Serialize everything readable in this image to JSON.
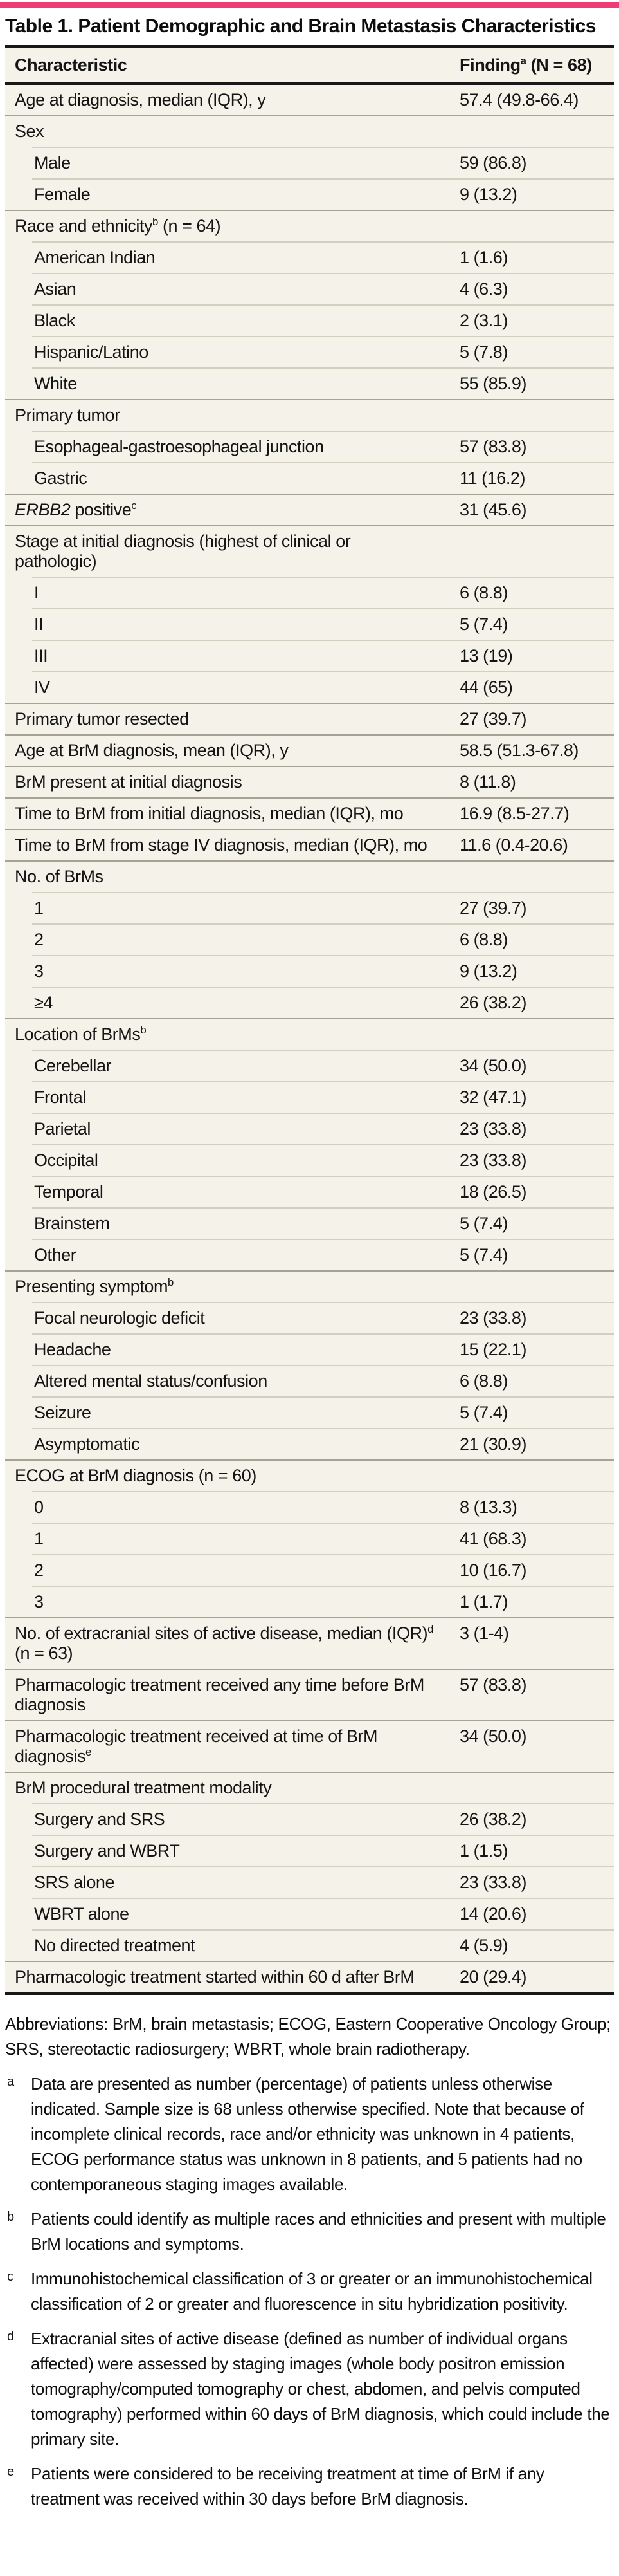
{
  "colors": {
    "accent": "#ee3d74",
    "table_bg": "#f4f2e9",
    "heavy_rule": "#181818",
    "rule_full": "#a6a396",
    "rule_sub": "#d3d0c2"
  },
  "title": "Table 1. Patient Demographic and Brain Metastasis Characteristics",
  "table": {
    "columns": {
      "characteristic": "Characteristic",
      "finding": "Finding^a (N = 68)"
    },
    "rows": [
      {
        "label": "Age at diagnosis, median (IQR), y",
        "value": "57.4 (49.8-66.4)",
        "indent": 0
      },
      {
        "label": "Sex",
        "value": "",
        "indent": 0
      },
      {
        "label": "Male",
        "value": "59 (86.8)",
        "indent": 1
      },
      {
        "label": "Female",
        "value": "9 (13.2)",
        "indent": 1
      },
      {
        "label": "Race and ethnicity^b (n = 64)",
        "value": "",
        "indent": 0
      },
      {
        "label": "American Indian",
        "value": "1 (1.6)",
        "indent": 1
      },
      {
        "label": "Asian",
        "value": "4 (6.3)",
        "indent": 1
      },
      {
        "label": "Black",
        "value": "2 (3.1)",
        "indent": 1
      },
      {
        "label": "Hispanic/Latino",
        "value": "5 (7.8)",
        "indent": 1
      },
      {
        "label": "White",
        "value": "55 (85.9)",
        "indent": 1
      },
      {
        "label": "Primary tumor",
        "value": "",
        "indent": 0
      },
      {
        "label": "Esophageal-gastroesophageal junction",
        "value": "57 (83.8)",
        "indent": 1
      },
      {
        "label": "Gastric",
        "value": "11 (16.2)",
        "indent": 1
      },
      {
        "label": "*ERBB2* positive^c",
        "value": "31 (45.6)",
        "indent": 0
      },
      {
        "label": "Stage at initial diagnosis (highest of clinical or\npathologic)",
        "value": "",
        "indent": 0
      },
      {
        "label": "I",
        "value": "6 (8.8)",
        "indent": 1
      },
      {
        "label": "II",
        "value": "5 (7.4)",
        "indent": 1
      },
      {
        "label": "III",
        "value": "13 (19)",
        "indent": 1
      },
      {
        "label": "IV",
        "value": "44 (65)",
        "indent": 1
      },
      {
        "label": "Primary tumor resected",
        "value": "27 (39.7)",
        "indent": 0
      },
      {
        "label": "Age at BrM diagnosis, mean (IQR), y",
        "value": "58.5 (51.3-67.8)",
        "indent": 0
      },
      {
        "label": "BrM present at initial diagnosis",
        "value": "8 (11.8)",
        "indent": 0
      },
      {
        "label": "Time to BrM from initial diagnosis, median (IQR), mo",
        "value": "16.9 (8.5-27.7)",
        "indent": 0
      },
      {
        "label": "Time to BrM from stage IV diagnosis, median (IQR), mo",
        "value": "11.6 (0.4-20.6)",
        "indent": 0
      },
      {
        "label": "No. of BrMs",
        "value": "",
        "indent": 0
      },
      {
        "label": "1",
        "value": "27 (39.7)",
        "indent": 1
      },
      {
        "label": "2",
        "value": "6 (8.8)",
        "indent": 1
      },
      {
        "label": "3",
        "value": "9 (13.2)",
        "indent": 1
      },
      {
        "label": "≥4",
        "value": "26 (38.2)",
        "indent": 1
      },
      {
        "label": "Location of BrMs^b",
        "value": "",
        "indent": 0
      },
      {
        "label": "Cerebellar",
        "value": "34 (50.0)",
        "indent": 1
      },
      {
        "label": "Frontal",
        "value": "32 (47.1)",
        "indent": 1
      },
      {
        "label": "Parietal",
        "value": "23 (33.8)",
        "indent": 1
      },
      {
        "label": "Occipital",
        "value": "23 (33.8)",
        "indent": 1
      },
      {
        "label": "Temporal",
        "value": "18 (26.5)",
        "indent": 1
      },
      {
        "label": "Brainstem",
        "value": "5 (7.4)",
        "indent": 1
      },
      {
        "label": "Other",
        "value": "5 (7.4)",
        "indent": 1
      },
      {
        "label": "Presenting symptom^b",
        "value": "",
        "indent": 0
      },
      {
        "label": "Focal neurologic deficit",
        "value": "23 (33.8)",
        "indent": 1
      },
      {
        "label": "Headache",
        "value": "15 (22.1)",
        "indent": 1
      },
      {
        "label": "Altered mental status/confusion",
        "value": "6 (8.8)",
        "indent": 1
      },
      {
        "label": "Seizure",
        "value": "5 (7.4)",
        "indent": 1
      },
      {
        "label": "Asymptomatic",
        "value": "21 (30.9)",
        "indent": 1
      },
      {
        "label": "ECOG at BrM diagnosis (n = 60)",
        "value": "",
        "indent": 0
      },
      {
        "label": "0",
        "value": "8 (13.3)",
        "indent": 1
      },
      {
        "label": "1",
        "value": "41 (68.3)",
        "indent": 1
      },
      {
        "label": "2",
        "value": "10 (16.7)",
        "indent": 1
      },
      {
        "label": "3",
        "value": "1 (1.7)",
        "indent": 1
      },
      {
        "label": "No. of extracranial sites of active disease, median (IQR)^d\n(n = 63)",
        "value": "3 (1-4)",
        "indent": 0
      },
      {
        "label": "Pharmacologic treatment received any time before BrM\ndiagnosis",
        "value": "57 (83.8)",
        "indent": 0
      },
      {
        "label": "Pharmacologic treatment received at time of BrM\ndiagnosis^e",
        "value": "34 (50.0)",
        "indent": 0
      },
      {
        "label": "BrM procedural treatment modality",
        "value": "",
        "indent": 0
      },
      {
        "label": "Surgery and SRS",
        "value": "26 (38.2)",
        "indent": 1
      },
      {
        "label": "Surgery and WBRT",
        "value": "1 (1.5)",
        "indent": 1
      },
      {
        "label": "SRS alone",
        "value": "23 (33.8)",
        "indent": 1
      },
      {
        "label": "WBRT alone",
        "value": "14 (20.6)",
        "indent": 1
      },
      {
        "label": "No directed treatment",
        "value": "4 (5.9)",
        "indent": 1
      },
      {
        "label": "Pharmacologic treatment started within 60 d after BrM",
        "value": "20 (29.4)",
        "indent": 0
      }
    ]
  },
  "footnotes": {
    "abbreviations": "Abbreviations: BrM, brain metastasis; ECOG, Eastern Cooperative Oncology Group; SRS, stereotactic radiosurgery; WBRT, whole brain radiotherapy.",
    "items": [
      {
        "marker": "a",
        "text": "Data are presented as number (percentage) of patients unless otherwise indicated. Sample size is 68 unless otherwise specified. Note that because of incomplete clinical records, race and/or ethnicity was unknown in 4 patients, ECOG performance status was unknown in 8 patients, and 5 patients had no contemporaneous staging images available."
      },
      {
        "marker": "b",
        "text": "Patients could identify as multiple races and ethnicities and present with multiple BrM locations and symptoms."
      },
      {
        "marker": "c",
        "text": "Immunohistochemical classification of 3 or greater or an immunohistochemical classification of 2 or greater and fluorescence in situ hybridization positivity."
      },
      {
        "marker": "d",
        "text": "Extracranial sites of active disease (defined as number of individual organs affected) were assessed by staging images (whole body positron emission tomography/computed tomography or chest, abdomen, and pelvis computed tomography) performed within 60 days of BrM diagnosis, which could include the primary site."
      },
      {
        "marker": "e",
        "text": "Patients were considered to be receiving treatment at time of BrM if any treatment was received within 30 days before BrM diagnosis."
      }
    ]
  }
}
